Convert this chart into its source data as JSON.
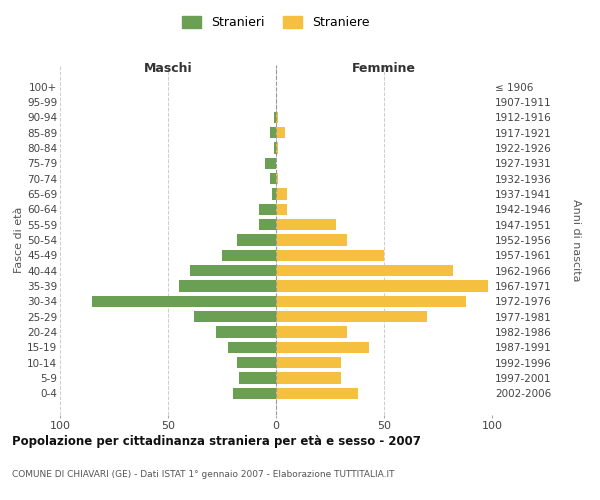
{
  "age_groups": [
    "100+",
    "95-99",
    "90-94",
    "85-89",
    "80-84",
    "75-79",
    "70-74",
    "65-69",
    "60-64",
    "55-59",
    "50-54",
    "45-49",
    "40-44",
    "35-39",
    "30-34",
    "25-29",
    "20-24",
    "15-19",
    "10-14",
    "5-9",
    "0-4"
  ],
  "birth_years": [
    "≤ 1906",
    "1907-1911",
    "1912-1916",
    "1917-1921",
    "1922-1926",
    "1927-1931",
    "1932-1936",
    "1937-1941",
    "1942-1946",
    "1947-1951",
    "1952-1956",
    "1957-1961",
    "1962-1966",
    "1967-1971",
    "1972-1976",
    "1977-1981",
    "1982-1986",
    "1987-1991",
    "1992-1996",
    "1997-2001",
    "2002-2006"
  ],
  "maschi": [
    0,
    0,
    1,
    3,
    1,
    5,
    3,
    2,
    8,
    8,
    18,
    25,
    40,
    45,
    85,
    38,
    28,
    22,
    18,
    17,
    20
  ],
  "femmine": [
    0,
    0,
    1,
    4,
    1,
    0,
    1,
    5,
    5,
    28,
    33,
    50,
    82,
    98,
    88,
    70,
    33,
    43,
    30,
    30,
    38
  ],
  "color_maschi": "#6b9f54",
  "color_femmine": "#f5c040",
  "title": "Popolazione per cittadinanza straniera per età e sesso - 2007",
  "subtitle": "COMUNE DI CHIAVARI (GE) - Dati ISTAT 1° gennaio 2007 - Elaborazione TUTTITALIA.IT",
  "ylabel_left": "Fasce di età",
  "ylabel_right": "Anni di nascita",
  "xlabel_left": "Maschi",
  "xlabel_right": "Femmine",
  "legend_maschi": "Stranieri",
  "legend_femmine": "Straniere",
  "xlim": 100,
  "background_color": "#ffffff",
  "grid_color": "#cccccc"
}
